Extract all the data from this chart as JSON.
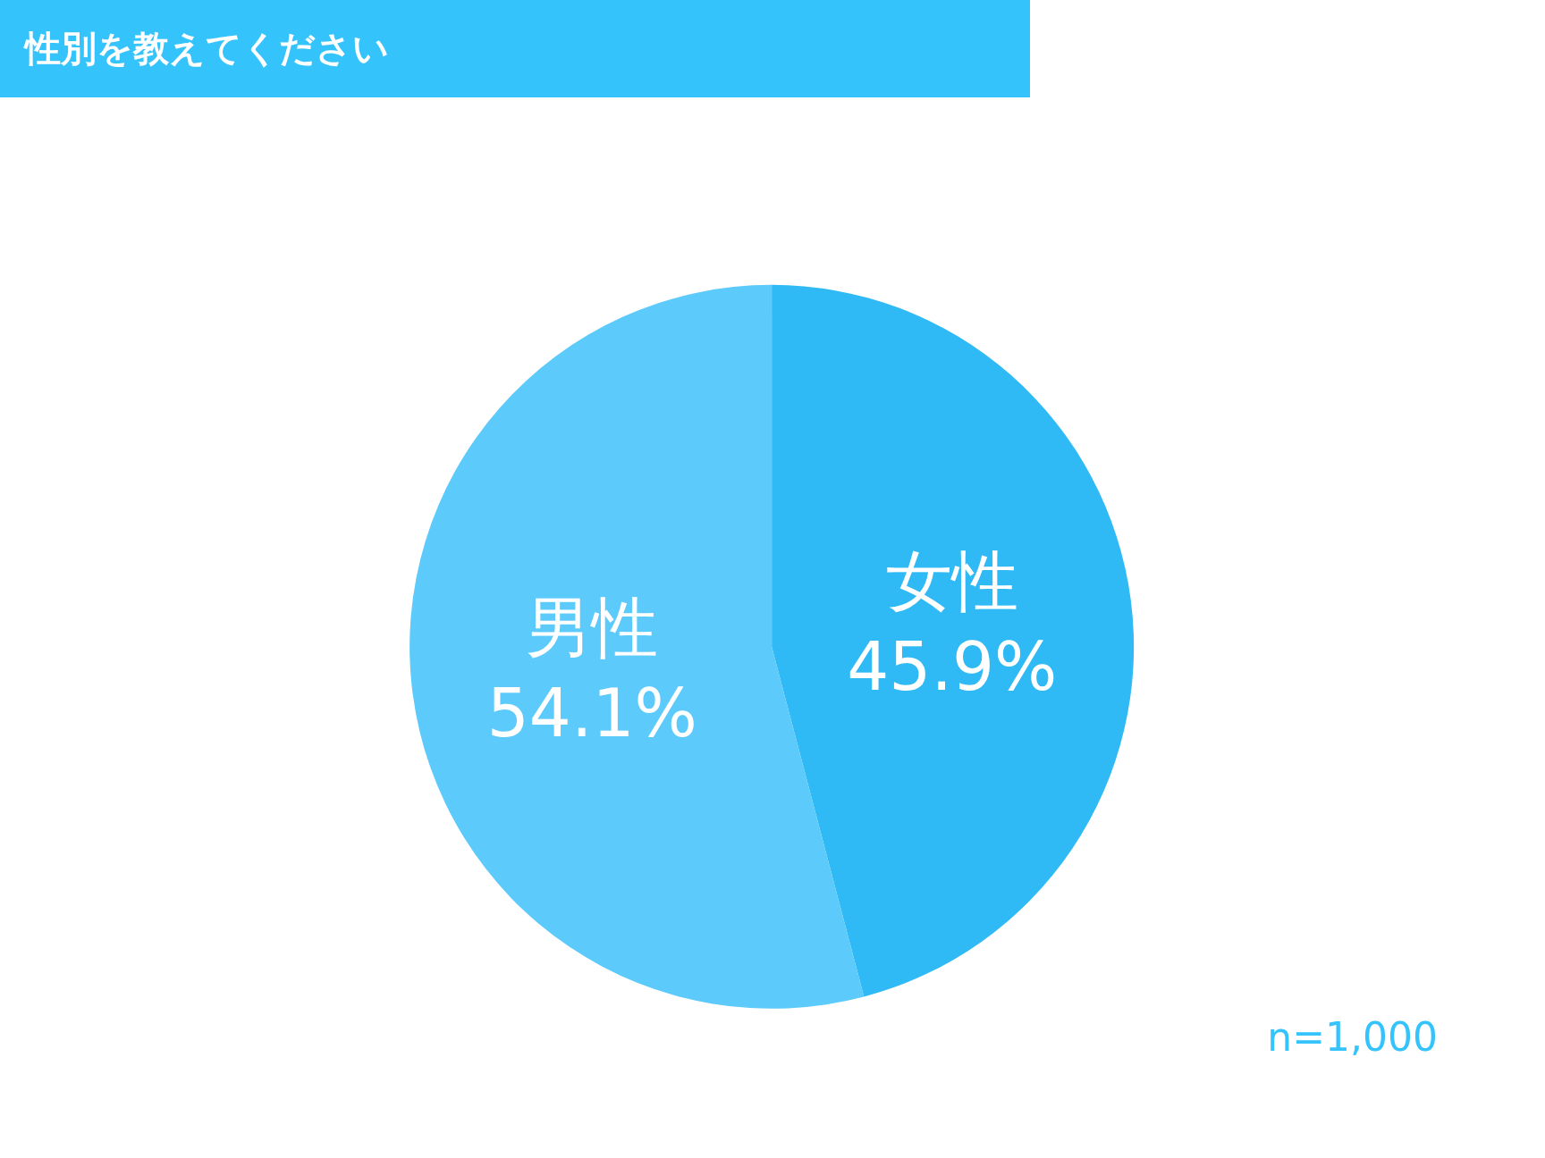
{
  "chart_data": {
    "type": "pie",
    "title": "性別を教えてください",
    "categories": [
      "女性",
      "男性"
    ],
    "values": [
      45.9,
      54.1
    ],
    "value_labels": [
      "45.9%",
      "54.1%"
    ],
    "colors": [
      "#2fb9f5",
      "#5ccafa"
    ],
    "legend": false,
    "annotations": [
      "n=1,000"
    ]
  }
}
